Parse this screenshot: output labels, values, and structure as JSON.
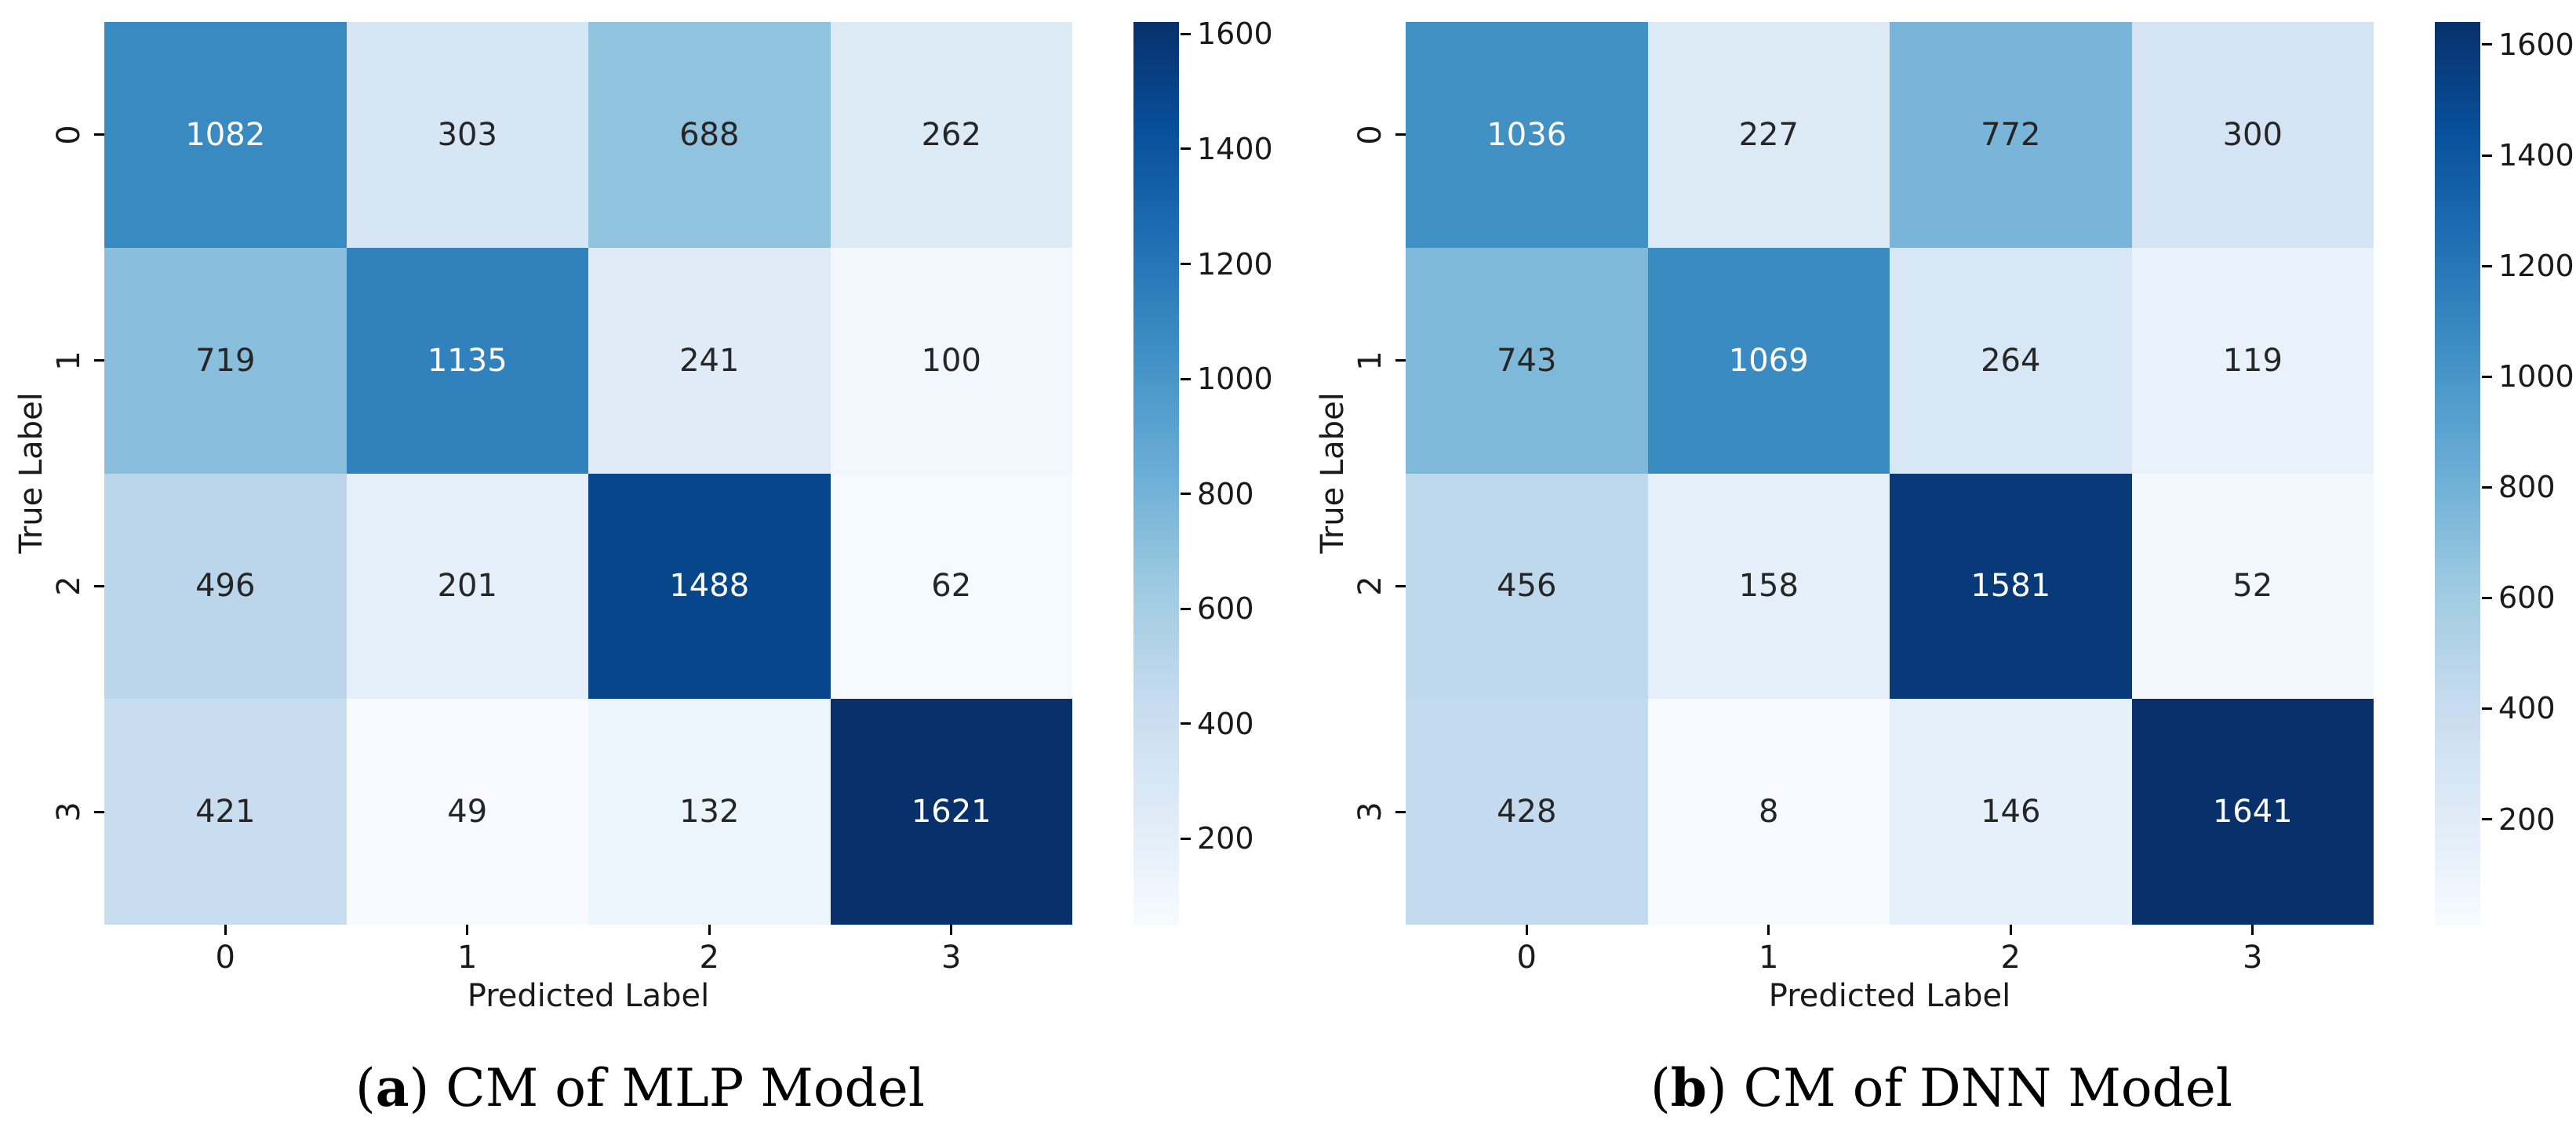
{
  "chart_data": [
    {
      "type": "heatmap",
      "caption": {
        "open": "(",
        "letter": "a",
        "close": ")",
        "text": " CM of MLP Model"
      },
      "xlabel": "Predicted Label",
      "ylabel": "True Label",
      "x_tick_labels": [
        "0",
        "1",
        "2",
        "3"
      ],
      "y_tick_labels": [
        "0",
        "1",
        "2",
        "3"
      ],
      "values": [
        [
          1082,
          303,
          688,
          262
        ],
        [
          719,
          1135,
          241,
          100
        ],
        [
          496,
          201,
          1488,
          62
        ],
        [
          421,
          49,
          132,
          1621
        ]
      ],
      "colormap": "Blues",
      "colormap_stops": [
        "#f7fbff",
        "#deebf7",
        "#c6dbef",
        "#9ecae1",
        "#6baed6",
        "#4292c6",
        "#2171b5",
        "#08519c",
        "#08306b"
      ],
      "vmin": 49,
      "vmax": 1621,
      "colorbar_ticks": [
        200,
        400,
        600,
        800,
        1000,
        1200,
        1400,
        1600
      ],
      "annotation_dark_color": "#262626",
      "annotation_light_color": "#ffffff",
      "legend_position": "right-colorbar",
      "grid": false
    },
    {
      "type": "heatmap",
      "caption": {
        "open": "(",
        "letter": "b",
        "close": ")",
        "text": " CM of DNN Model"
      },
      "xlabel": "Predicted Label",
      "ylabel": "True Label",
      "x_tick_labels": [
        "0",
        "1",
        "2",
        "3"
      ],
      "y_tick_labels": [
        "0",
        "1",
        "2",
        "3"
      ],
      "values": [
        [
          1036,
          227,
          772,
          300
        ],
        [
          743,
          1069,
          264,
          119
        ],
        [
          456,
          158,
          1581,
          52
        ],
        [
          428,
          8,
          146,
          1641
        ]
      ],
      "colormap": "Blues",
      "colormap_stops": [
        "#f7fbff",
        "#deebf7",
        "#c6dbef",
        "#9ecae1",
        "#6baed6",
        "#4292c6",
        "#2171b5",
        "#08519c",
        "#08306b"
      ],
      "vmin": 8,
      "vmax": 1641,
      "colorbar_ticks": [
        200,
        400,
        600,
        800,
        1000,
        1200,
        1400,
        1600
      ],
      "annotation_dark_color": "#262626",
      "annotation_light_color": "#ffffff",
      "legend_position": "right-colorbar",
      "grid": false
    }
  ]
}
